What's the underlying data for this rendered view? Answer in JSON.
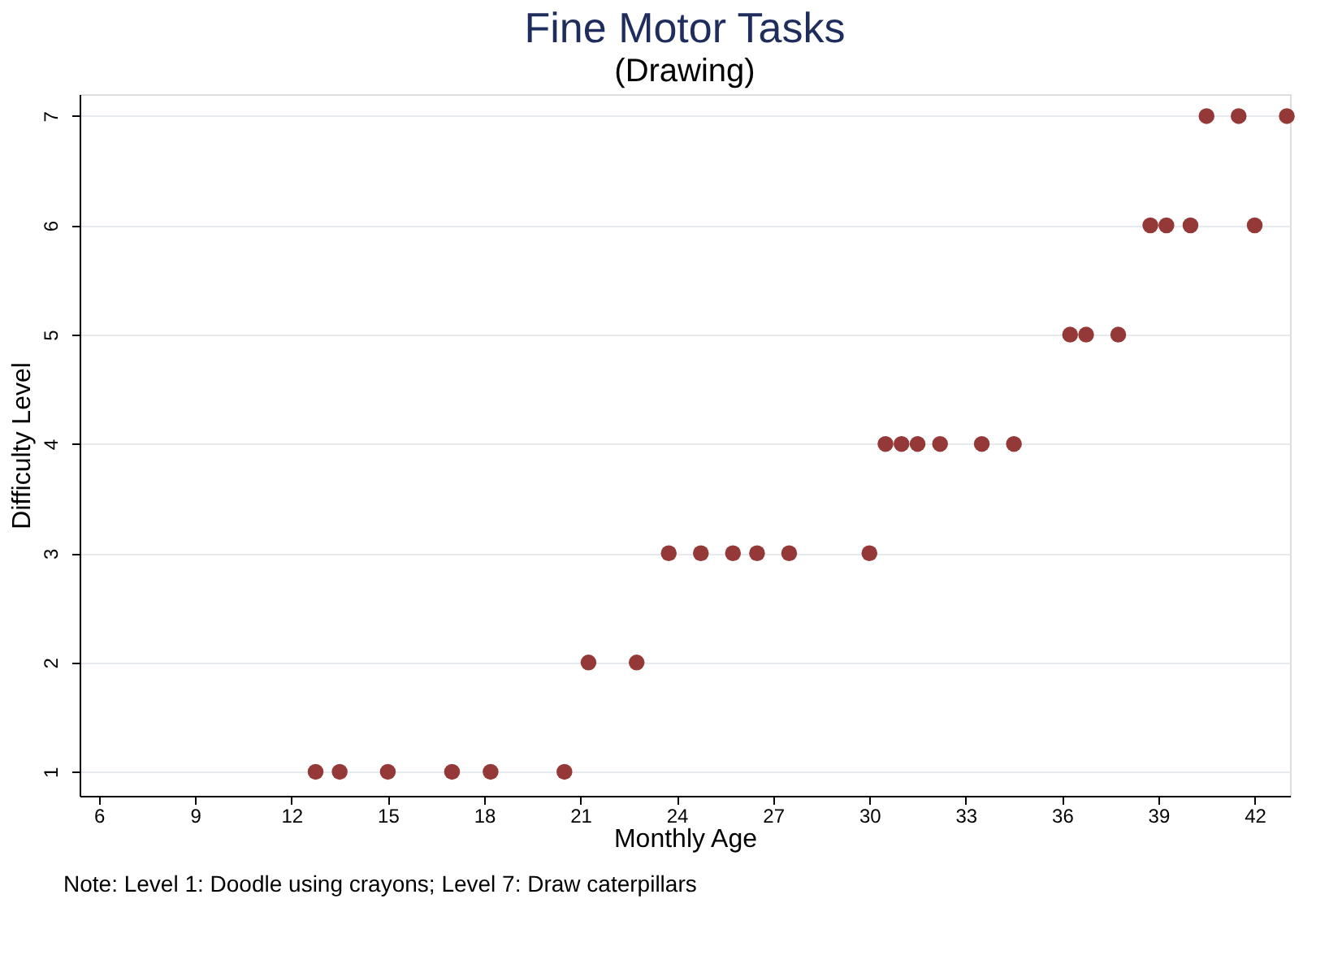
{
  "chart_data": {
    "type": "scatter",
    "title": "Fine Motor Tasks",
    "subtitle": "(Drawing)",
    "xlabel": "Monthly Age",
    "ylabel": "Difficulty Level",
    "x": [
      12.75,
      13.5,
      15,
      17,
      18.2,
      20.5,
      21.25,
      22.75,
      23.75,
      24.75,
      25.75,
      26.5,
      27.5,
      30,
      30.5,
      31,
      31.5,
      32.2,
      33.5,
      34.5,
      36.25,
      36.75,
      37.75,
      38.75,
      39.25,
      40,
      42,
      40.5,
      41.5,
      43
    ],
    "values": [
      1,
      1,
      1,
      1,
      1,
      1,
      2,
      2,
      3,
      3,
      3,
      3,
      3,
      3,
      4,
      4,
      4,
      4,
      4,
      4,
      5,
      5,
      5,
      6,
      6,
      6,
      6,
      7,
      7,
      7
    ],
    "color": "#943838",
    "marker": "circle",
    "xlim": [
      5.4,
      43.1
    ],
    "xticks": [
      6,
      9,
      12,
      15,
      18,
      21,
      24,
      27,
      30,
      33,
      36,
      39,
      42
    ],
    "ylim": [
      0.78,
      7.2
    ],
    "yticks": [
      1,
      2,
      3,
      4,
      5,
      6,
      7
    ],
    "grid": "y",
    "annotations": [
      "Note: Level 1: Doodle using crayons; Level 7: Draw caterpillars"
    ]
  }
}
